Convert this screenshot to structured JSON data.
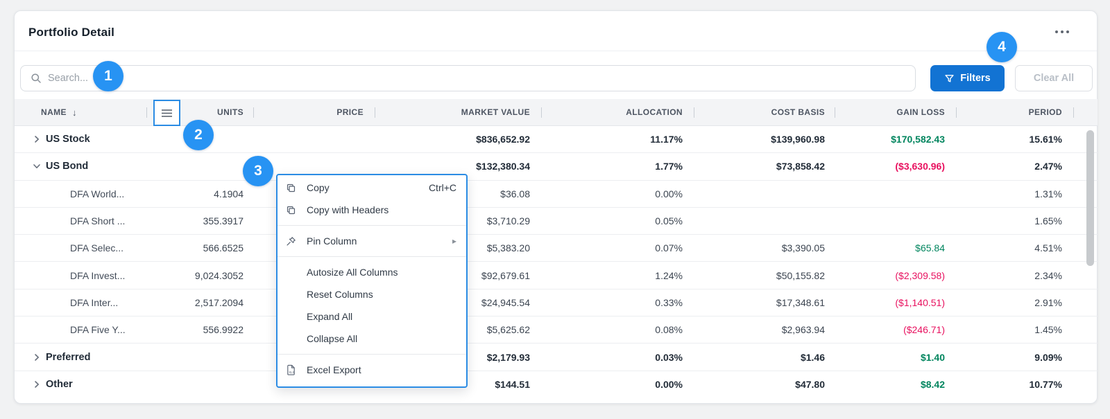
{
  "header": {
    "title": "Portfolio Detail"
  },
  "toolbar": {
    "search_placeholder": "Search...",
    "filters_label": "Filters",
    "clear_all_label": "Clear All"
  },
  "badges": [
    "1",
    "2",
    "3",
    "4"
  ],
  "table": {
    "columns": [
      "NAME",
      "UNITS",
      "PRICE",
      "MARKET VALUE",
      "ALLOCATION",
      "COST BASIS",
      "GAIN LOSS",
      "PERIOD"
    ],
    "sort": {
      "column": "NAME",
      "direction": "descending"
    },
    "rows": [
      {
        "name": "US Stock",
        "level": "group",
        "expanded": false,
        "units": "",
        "price": "",
        "market_value": "$836,652.92",
        "allocation": "11.17%",
        "cost_basis": "$139,960.98",
        "gain_loss": "$170,582.43",
        "period": "15.61%"
      },
      {
        "name": "US Bond",
        "level": "group",
        "expanded": true,
        "units": "",
        "price": "",
        "market_value": "$132,380.34",
        "allocation": "1.77%",
        "cost_basis": "$73,858.42",
        "gain_loss": "($3,630.96)",
        "period": "2.47%"
      },
      {
        "name": "DFA World...",
        "level": "child",
        "units": "4.1904",
        "price": "",
        "market_value": "$36.08",
        "allocation": "0.00%",
        "cost_basis": "",
        "gain_loss": "",
        "period": "1.31%"
      },
      {
        "name": "DFA Short ...",
        "level": "child",
        "units": "355.3917",
        "price": "",
        "market_value": "$3,710.29",
        "allocation": "0.05%",
        "cost_basis": "",
        "gain_loss": "",
        "period": "1.65%"
      },
      {
        "name": "DFA Selec...",
        "level": "child",
        "units": "566.6525",
        "price": "",
        "market_value": "$5,383.20",
        "allocation": "0.07%",
        "cost_basis": "$3,390.05",
        "gain_loss": "$65.84",
        "period": "4.51%"
      },
      {
        "name": "DFA Invest...",
        "level": "child",
        "units": "9,024.3052",
        "price": "",
        "market_value": "$92,679.61",
        "allocation": "1.24%",
        "cost_basis": "$50,155.82",
        "gain_loss": "($2,309.58)",
        "period": "2.34%"
      },
      {
        "name": "DFA Inter...",
        "level": "child",
        "units": "2,517.2094",
        "price": "",
        "market_value": "$24,945.54",
        "allocation": "0.33%",
        "cost_basis": "$17,348.61",
        "gain_loss": "($1,140.51)",
        "period": "2.91%"
      },
      {
        "name": "DFA Five Y...",
        "level": "child",
        "units": "556.9922",
        "price": "",
        "market_value": "$5,625.62",
        "allocation": "0.08%",
        "cost_basis": "$2,963.94",
        "gain_loss": "($246.71)",
        "period": "1.45%"
      },
      {
        "name": "Preferred",
        "level": "group",
        "expanded": false,
        "units": "",
        "price": "",
        "market_value": "$2,179.93",
        "allocation": "0.03%",
        "cost_basis": "$1.46",
        "gain_loss": "$1.40",
        "period": "9.09%"
      },
      {
        "name": "Other",
        "level": "group",
        "expanded": false,
        "units": "",
        "price": "",
        "market_value": "$144.51",
        "allocation": "0.00%",
        "cost_basis": "$47.80",
        "gain_loss": "$8.42",
        "period": "10.77%"
      }
    ]
  },
  "context_menu": {
    "items": [
      {
        "label": "Copy",
        "icon": "copy",
        "shortcut": "Ctrl+C"
      },
      {
        "label": "Copy with Headers",
        "icon": "copy"
      },
      {
        "separator": true
      },
      {
        "label": "Pin Column",
        "icon": "pin",
        "submenu": true
      },
      {
        "separator": true
      },
      {
        "label": "Autosize All Columns"
      },
      {
        "label": "Reset Columns"
      },
      {
        "label": "Expand All"
      },
      {
        "label": "Collapse All"
      },
      {
        "separator": true
      },
      {
        "label": "Excel Export",
        "icon": "excel"
      }
    ]
  },
  "colors": {
    "accent_blue": "#2793f3",
    "button_blue": "#1273d3",
    "highlight_border": "#2b8ce4",
    "positive_green": "#00855e",
    "negative_red": "#e8115f"
  }
}
